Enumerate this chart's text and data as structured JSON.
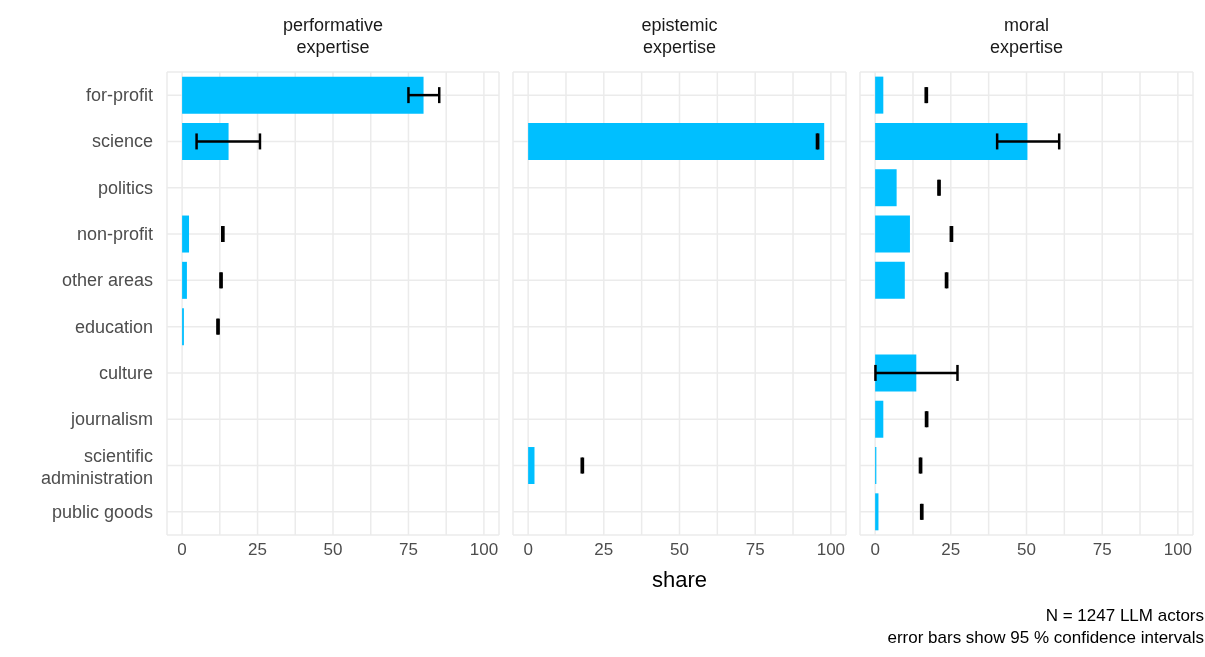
{
  "chart_data": [
    {
      "type": "bar",
      "orientation": "horizontal",
      "title": "performative\nexpertise",
      "categories": [
        "for-profit",
        "science",
        "politics",
        "non-profit",
        "other areas",
        "education",
        "culture",
        "journalism",
        "scientific administration",
        "public goods"
      ],
      "values": [
        80,
        15.4,
        null,
        2.3,
        1.6,
        0.6,
        null,
        null,
        null,
        null
      ],
      "errors": [
        [
          75,
          85.2
        ],
        [
          4.8,
          25.8
        ],
        null,
        [
          13.3,
          13.7
        ],
        [
          12.7,
          13.1
        ],
        [
          11.7,
          12.1
        ],
        null,
        null,
        null,
        null
      ],
      "color": "#00bfff",
      "xlim": [
        -5,
        105
      ],
      "xticks": [
        0,
        {
          "value": 12.5,
          "label": null
        },
        25,
        {
          "value": 37.5,
          "label": null
        },
        50,
        {
          "value": 62.5,
          "label": null
        },
        75,
        {
          "value": 87.5,
          "label": null
        },
        100
      ],
      "grid": true
    },
    {
      "type": "bar",
      "orientation": "horizontal",
      "title": "epistemic\nexpertise",
      "xlabel": "share",
      "categories": [
        null,
        null,
        null,
        null,
        null,
        null,
        null,
        null,
        null,
        null
      ],
      "values": [
        null,
        97.8,
        null,
        null,
        null,
        null,
        null,
        null,
        2.1,
        null
      ],
      "errors": [
        null,
        [
          95.4,
          95.8
        ],
        null,
        null,
        null,
        null,
        null,
        null,
        [
          17.7,
          18.1
        ],
        null
      ],
      "color": "#00bfff",
      "xlim": [
        -5,
        105
      ],
      "xticks": [
        0,
        {
          "value": 12.5,
          "label": null
        },
        25,
        {
          "value": 37.5,
          "label": null
        },
        50,
        {
          "value": 62.5,
          "label": null
        },
        75,
        {
          "value": 87.5,
          "label": null
        },
        100
      ],
      "grid": true,
      "tick_labels": "x"
    },
    {
      "type": "bar",
      "orientation": "horizontal",
      "title": "moral\nexpertise",
      "categories": [
        null,
        null,
        null,
        null,
        null,
        null,
        null,
        null,
        null,
        null
      ],
      "values": [
        2.7,
        50.3,
        7.1,
        11.5,
        9.8,
        null,
        13.6,
        2.7,
        0.4,
        1.1
      ],
      "errors": [
        [
          16.7,
          17.1
        ],
        [
          40.3,
          60.8
        ],
        [
          20.9,
          21.3
        ],
        [
          25,
          25.4
        ],
        [
          23.4,
          23.8
        ],
        null,
        [
          0.1,
          27.2
        ],
        [
          16.8,
          17.2
        ],
        [
          14.8,
          15.2
        ],
        [
          15.2,
          15.6
        ]
      ],
      "color": "#00bfff",
      "xlim": [
        -5,
        105
      ],
      "xticks": [
        0,
        {
          "value": 12.5,
          "label": null
        },
        25,
        {
          "value": 37.5,
          "label": null
        },
        50,
        {
          "value": 62.5,
          "label": null
        },
        75,
        {
          "value": 87.5,
          "label": null
        },
        100
      ],
      "grid": true,
      "tick_labels": "x",
      "annotations": [
        "N = 1247 LLM actors",
        "error bars show 95 % confidence intervals"
      ]
    }
  ]
}
